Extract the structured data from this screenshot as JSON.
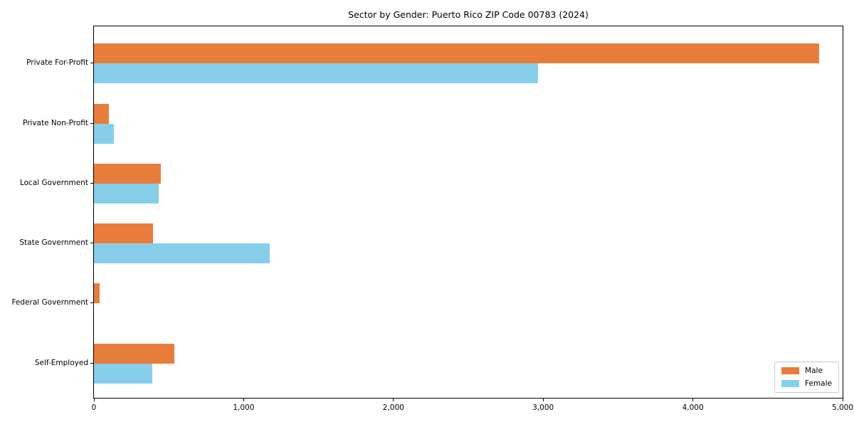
{
  "chart_data": {
    "type": "bar",
    "orientation": "horizontal",
    "title": "Sector by Gender: Puerto Rico ZIP Code 00783 (2024)",
    "categories": [
      "Private For-Profit",
      "Private Non-Profit",
      "Local Government",
      "State Government",
      "Federal Government",
      "Self-Employed"
    ],
    "series": [
      {
        "name": "Male",
        "color": "#E87D3B",
        "values": [
          4845,
          100,
          448,
          394,
          37,
          539
        ]
      },
      {
        "name": "Female",
        "color": "#87CEEB",
        "values": [
          2965,
          135,
          433,
          1173,
          0,
          389
        ]
      }
    ],
    "xlabel": "",
    "ylabel": "",
    "xlim": [
      0,
      5000
    ],
    "x_ticks": [
      {
        "value": 0,
        "label": "0"
      },
      {
        "value": 1000,
        "label": "1,000"
      },
      {
        "value": 2000,
        "label": "2,000"
      },
      {
        "value": 3000,
        "label": "3,000"
      },
      {
        "value": 4000,
        "label": "4,000"
      },
      {
        "value": 5000,
        "label": "5,000"
      }
    ],
    "grid": false,
    "legend_position": "lower right"
  },
  "colors": {
    "axis": "#000000",
    "background": "#ffffff",
    "legend_border": "#c9c9c9",
    "male": "#E87D3B",
    "female": "#87CEEB"
  }
}
